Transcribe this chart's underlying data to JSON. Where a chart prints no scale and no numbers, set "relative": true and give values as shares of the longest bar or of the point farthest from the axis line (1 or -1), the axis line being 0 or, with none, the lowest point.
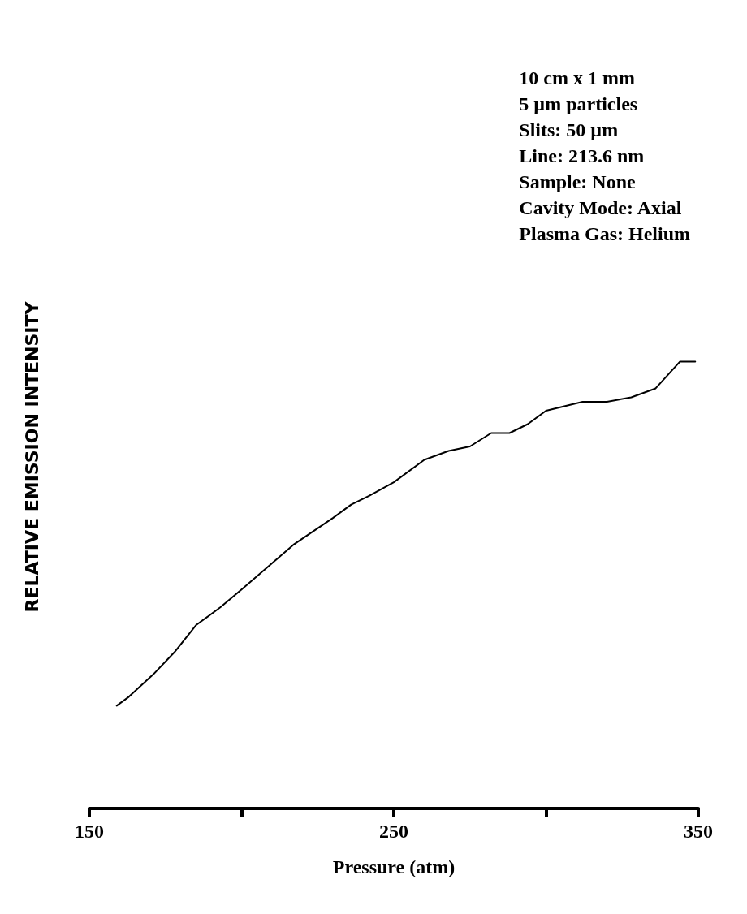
{
  "chart_data": {
    "type": "line",
    "relative": true,
    "xlabel": "Pressure (atm)",
    "ylabel": "RELATIVE EMISSION INTENSITY",
    "annotations": [
      "10 cm x 1 mm",
      "5 µm particles",
      "Slits: 50 µm",
      "Line: 213.6 nm",
      "Sample: None",
      "Cavity Mode: Axial",
      "Plasma Gas: Helium"
    ],
    "xlim": [
      150,
      350
    ],
    "xticks": [
      150,
      {
        "value": 200,
        "label": null
      },
      250,
      {
        "value": 300,
        "label": null
      },
      350
    ],
    "x": [
      159,
      163,
      171,
      178,
      185,
      193,
      200,
      217,
      230,
      236,
      242,
      250,
      260,
      268,
      275,
      282,
      288,
      294,
      300,
      312,
      320,
      328,
      336,
      344,
      349
    ],
    "series": [
      {
        "color": "#000000",
        "values": [
          0.23,
          0.25,
          0.3,
          0.35,
          0.41,
          0.45,
          0.49,
          0.59,
          0.65,
          0.68,
          0.7,
          0.73,
          0.78,
          0.8,
          0.81,
          0.84,
          0.84,
          0.86,
          0.89,
          0.91,
          0.91,
          0.92,
          0.94,
          1.0,
          1.0
        ]
      }
    ]
  }
}
